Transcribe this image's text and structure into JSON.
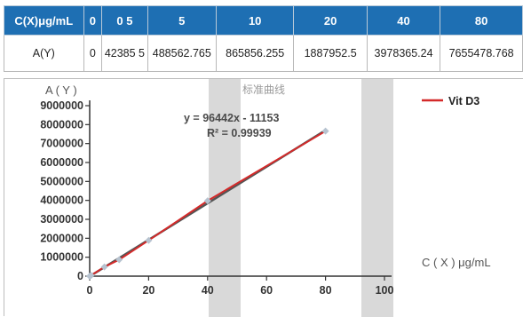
{
  "table": {
    "header_label": "C(X)μg/mL",
    "concentrations": [
      "0",
      "0 5",
      "5",
      "10",
      "20",
      "40",
      "80"
    ],
    "row_label": "A(Y)",
    "areas": [
      "0",
      "42385 5",
      "488562.765",
      "865856.255",
      "1887952.5",
      "3978365.24",
      "7655478.768"
    ]
  },
  "chart_data": {
    "type": "scatter",
    "title": "标准曲线",
    "xlabel": "C ( X ) μg/mL",
    "ylabel": "A ( Y )",
    "xlim": [
      0,
      100
    ],
    "ylim": [
      0,
      9000000
    ],
    "x_ticks": [
      "0",
      "20",
      "40",
      "60",
      "80",
      "100"
    ],
    "y_ticks": [
      "0",
      "1000000",
      "2000000",
      "3000000",
      "4000000",
      "5000000",
      "6000000",
      "7000000",
      "8000000",
      "9000000"
    ],
    "series": [
      {
        "name": "Vit D3",
        "color": "#d42a2a",
        "x": [
          0,
          0.5,
          5,
          10,
          20,
          40,
          80
        ],
        "y": [
          0,
          42385.5,
          488562.765,
          865856.255,
          1887952.5,
          3978365.24,
          7655478.768
        ]
      }
    ],
    "trendline": {
      "color": "#555555",
      "slope": 96442,
      "intercept": -11153,
      "equation": "y = 96442x - 11153",
      "r_squared": "R² = 0.99939"
    },
    "marker_color": "#b7c3d0",
    "grid": false,
    "legend": "top-right"
  }
}
